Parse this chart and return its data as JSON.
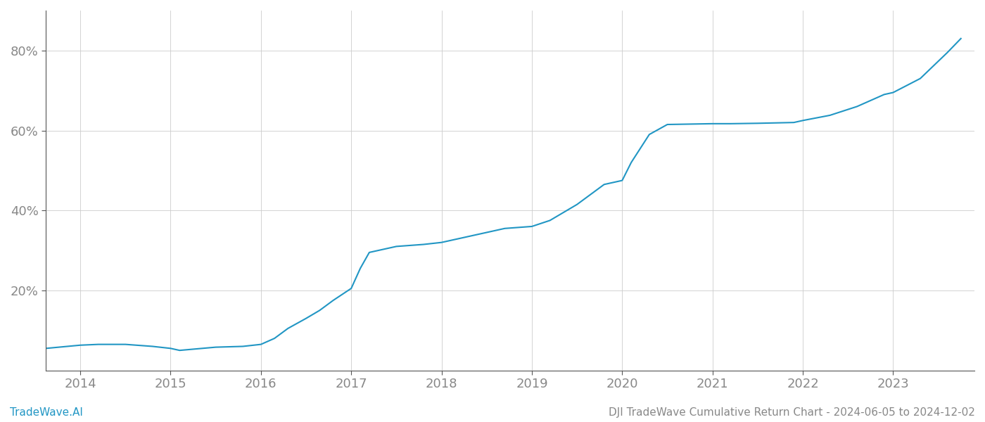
{
  "title": "DJI TradeWave Cumulative Return Chart - 2024-06-05 to 2024-12-02",
  "watermark": "TradeWave.AI",
  "line_color": "#2196c4",
  "background_color": "#ffffff",
  "grid_color": "#cccccc",
  "tick_color": "#888888",
  "x_years": [
    2014,
    2015,
    2016,
    2017,
    2018,
    2019,
    2020,
    2021,
    2022,
    2023
  ],
  "yticks": [
    0.2,
    0.4,
    0.6,
    0.8
  ],
  "ylim": [
    0.0,
    0.9
  ],
  "xlim": [
    2013.62,
    2023.9
  ],
  "data_x": [
    2013.62,
    2014.0,
    2014.2,
    2014.5,
    2014.8,
    2015.0,
    2015.1,
    2015.5,
    2015.8,
    2016.0,
    2016.15,
    2016.3,
    2016.5,
    2016.65,
    2016.8,
    2017.0,
    2017.1,
    2017.2,
    2017.5,
    2017.8,
    2018.0,
    2018.2,
    2018.5,
    2018.7,
    2019.0,
    2019.2,
    2019.5,
    2019.8,
    2019.9,
    2020.0,
    2020.1,
    2020.3,
    2020.5,
    2021.0,
    2021.2,
    2021.5,
    2021.9,
    2022.0,
    2022.3,
    2022.6,
    2022.9,
    2023.0,
    2023.3,
    2023.6,
    2023.75
  ],
  "data_y": [
    0.055,
    0.063,
    0.065,
    0.065,
    0.06,
    0.055,
    0.05,
    0.058,
    0.06,
    0.065,
    0.08,
    0.105,
    0.13,
    0.15,
    0.175,
    0.205,
    0.255,
    0.295,
    0.31,
    0.315,
    0.32,
    0.33,
    0.345,
    0.355,
    0.36,
    0.375,
    0.415,
    0.465,
    0.47,
    0.475,
    0.52,
    0.59,
    0.615,
    0.617,
    0.617,
    0.618,
    0.62,
    0.625,
    0.638,
    0.66,
    0.69,
    0.695,
    0.73,
    0.795,
    0.83
  ],
  "line_width": 1.5,
  "title_fontsize": 11,
  "watermark_fontsize": 11,
  "tick_fontsize": 13
}
